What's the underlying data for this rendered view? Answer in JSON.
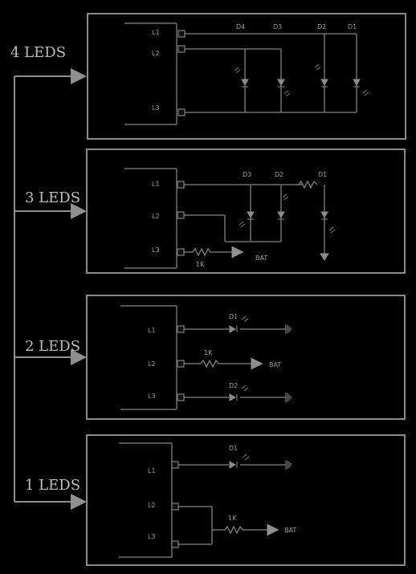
{
  "sections": [
    {
      "title": "4 LEDS",
      "pins": [
        "L1",
        "L2",
        "L3"
      ],
      "leds": [
        "D4",
        "D3",
        "D2",
        "D1"
      ]
    },
    {
      "title": "3 LEDS",
      "pins": [
        "L1",
        "L2",
        "L3"
      ],
      "leds": [
        "D3",
        "D2",
        "D1"
      ],
      "resistor": "1K",
      "bat": "BAT"
    },
    {
      "title": "2 LEDS",
      "pins": [
        "L1",
        "L2",
        "L3"
      ],
      "leds": [
        "D1",
        "D2"
      ],
      "resistor": "1K",
      "bat": "BAT"
    },
    {
      "title": "1 LEDS",
      "pins": [
        "L1",
        "L2",
        "L3"
      ],
      "leds": [
        "D1"
      ],
      "resistor": "1K",
      "bat": "BAT"
    }
  ]
}
